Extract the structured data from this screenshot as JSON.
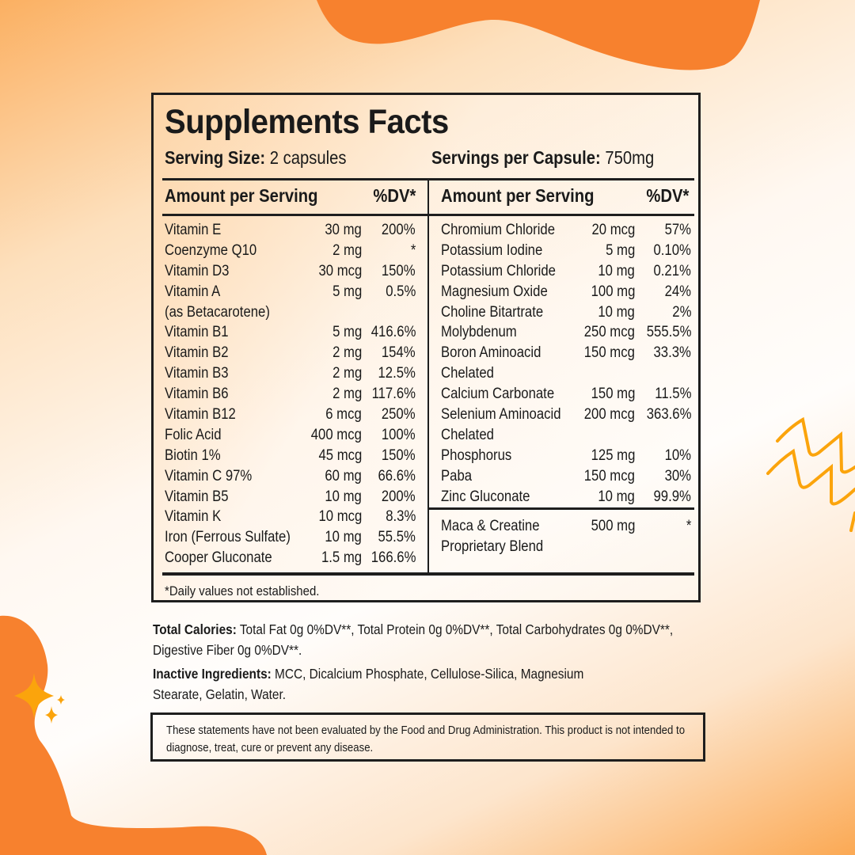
{
  "label": {
    "title": "Supplements Facts",
    "serving_size_label": "Serving Size:",
    "serving_size_value": " 2 capsules",
    "servings_per_capsule_label": "Servings per Capsule:",
    "servings_per_capsule_value": " 750mg",
    "left_column": {
      "header_amount": "Amount per Serving",
      "header_dv": "%DV*",
      "rows": [
        {
          "name": "Vitamin E",
          "amount": "30 mg",
          "dv": "200%"
        },
        {
          "name": "Coenzyme Q10",
          "amount": "2 mg",
          "dv": "*"
        },
        {
          "name": "Vitamin D3",
          "amount": "30 mcg",
          "dv": "150%"
        },
        {
          "name": "Vitamin A",
          "amount": "5 mg",
          "dv": "0.5%"
        },
        {
          "name": "(as Betacarotene)",
          "amount": "",
          "dv": ""
        },
        {
          "name": "Vitamin B1",
          "amount": "5 mg",
          "dv": "416.6%"
        },
        {
          "name": "Vitamin B2",
          "amount": "2 mg",
          "dv": "154%"
        },
        {
          "name": "Vitamin B3",
          "amount": "2 mg",
          "dv": "12.5%"
        },
        {
          "name": "Vitamin B6",
          "amount": "2 mg",
          "dv": "117.6%"
        },
        {
          "name": "Vitamin B12",
          "amount": "6 mcg",
          "dv": "250%"
        },
        {
          "name": "Folic Acid",
          "amount": "400 mcg",
          "dv": "100%"
        },
        {
          "name": "Biotin 1%",
          "amount": "45 mcg",
          "dv": "150%"
        },
        {
          "name": "Vitamin C 97%",
          "amount": "60 mg",
          "dv": "66.6%"
        },
        {
          "name": "Vitamin B5",
          "amount": "10 mg",
          "dv": "200%"
        },
        {
          "name": "Vitamin K",
          "amount": "10 mcg",
          "dv": "8.3%"
        },
        {
          "name": "Iron (Ferrous Sulfate)",
          "amount": "10 mg",
          "dv": "55.5%"
        },
        {
          "name": "Cooper Gluconate",
          "amount": "1.5 mg",
          "dv": "166.6%"
        }
      ]
    },
    "right_column": {
      "header_amount": "Amount per Serving",
      "header_dv": "%DV*",
      "rows": [
        {
          "name": "Chromium Chloride",
          "amount": "20 mcg",
          "dv": "57%"
        },
        {
          "name": "Potassium Iodine",
          "amount": "5 mg",
          "dv": "0.10%"
        },
        {
          "name": "Potassium Chloride",
          "amount": "10 mg",
          "dv": "0.21%"
        },
        {
          "name": "Magnesium Oxide",
          "amount": "100 mg",
          "dv": "24%"
        },
        {
          "name": "Choline Bitartrate",
          "amount": "10 mg",
          "dv": "2%"
        },
        {
          "name": "Molybdenum",
          "amount": "250 mcg",
          "dv": "555.5%"
        },
        {
          "name": "Boron Aminoacid",
          "amount": "150 mcg",
          "dv": "33.3%"
        },
        {
          "name": "Chelated",
          "amount": "",
          "dv": ""
        },
        {
          "name": "Calcium Carbonate",
          "amount": "150 mg",
          "dv": "11.5%"
        },
        {
          "name": "Selenium Aminoacid",
          "amount": "200 mcg",
          "dv": "363.6%"
        },
        {
          "name": "Chelated",
          "amount": "",
          "dv": ""
        },
        {
          "name": "Phosphorus",
          "amount": "125 mg",
          "dv": "10%"
        },
        {
          "name": "Paba",
          "amount": "150 mcg",
          "dv": "30%"
        },
        {
          "name": "Zinc Gluconate",
          "amount": "10 mg",
          "dv": "99.9%"
        }
      ],
      "blend": {
        "name_line1": "Maca & Creatine",
        "name_line2": "Proprietary Blend",
        "amount": "500 mg",
        "dv": "*"
      }
    },
    "footnote": "*Daily values not established."
  },
  "total_calories": {
    "label": "Total Calories:",
    "text": " Total Fat 0g 0%DV**, Total Protein 0g 0%DV**, Total Carbohydrates 0g 0%DV**, Digestive Fiber 0g 0%DV**."
  },
  "inactive_ingredients": {
    "label": "Inactive Ingredients:",
    "text_line1": " MCC, Dicalcium Phosphate, Cellulose-Silica, Magnesium",
    "text_line2": "Stearate, Gelatin, Water."
  },
  "disclaimer": "These statements have not been evaluated by the Food and Drug Administration. This product is not intended to diagnose, treat, cure or prevent any disease.",
  "colors": {
    "accent_orange": "#f7812e",
    "sparkle_yellow": "#fba40c",
    "border": "#1e1e1e"
  }
}
